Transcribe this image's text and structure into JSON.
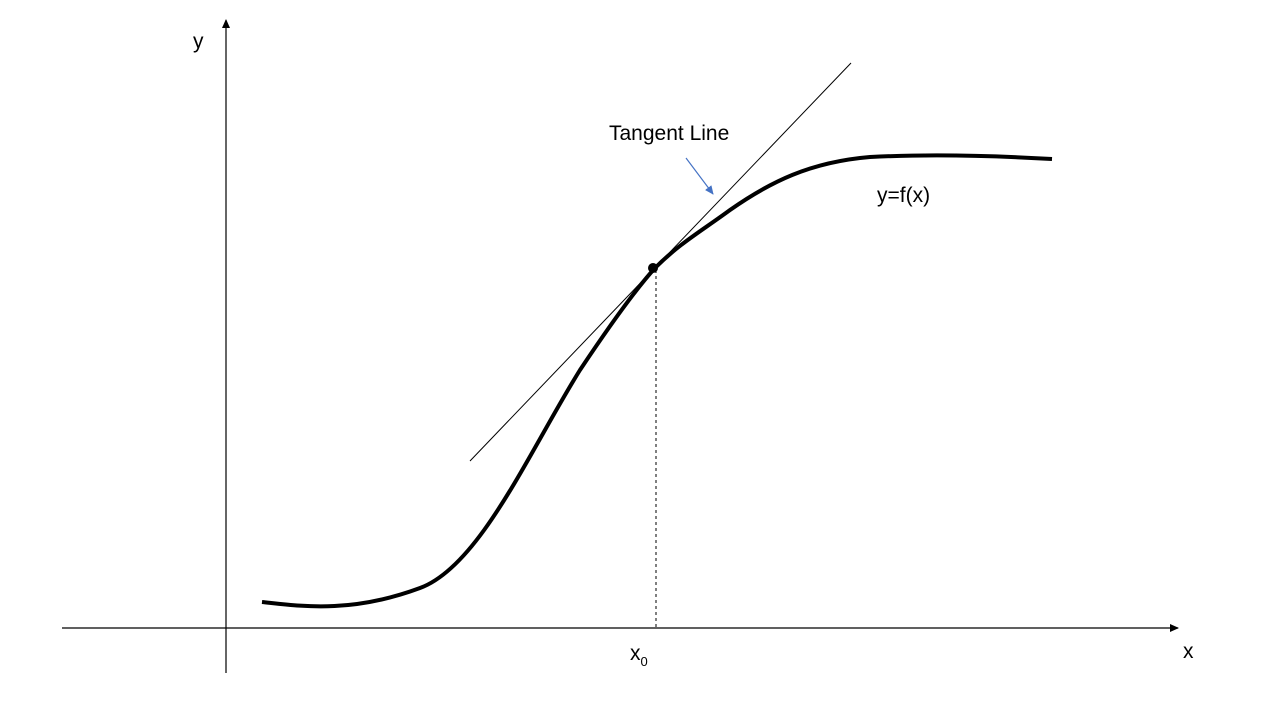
{
  "axes": {
    "x_label": "x",
    "y_label": "y",
    "x0_label_main": "x",
    "x0_label_sub": "0"
  },
  "tangent": {
    "label": "Tangent Line",
    "arrow_color": "#4472C4"
  },
  "curve": {
    "label": "y=f(x)"
  },
  "colors": {
    "curve": "#000000",
    "axes": "#000000",
    "background": "#ffffff"
  }
}
